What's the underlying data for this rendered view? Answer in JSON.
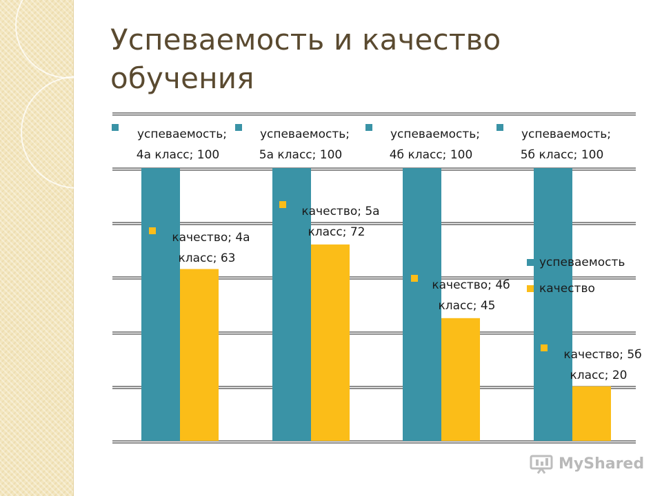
{
  "slide": {
    "title_line1": "Успеваемость и качество",
    "title_line2": "обучения",
    "brand": "MyShared"
  },
  "colors": {
    "success": "#3a93a6",
    "quality": "#fbbd18",
    "title": "#5a4a30",
    "gridline": "#1a1a1a",
    "strip": "#f3e6bf"
  },
  "chart_data": {
    "type": "bar",
    "categories": [
      "4а класс",
      "5а класс",
      "4б класс",
      "5б класс"
    ],
    "series": [
      {
        "name": "успеваемость",
        "values": [
          100,
          100,
          100,
          100
        ],
        "color": "#3a93a6"
      },
      {
        "name": "качество",
        "values": [
          63,
          72,
          45,
          20
        ],
        "color": "#fbbd18"
      }
    ],
    "ylim": [
      0,
      100
    ],
    "grid": true,
    "legend": "right",
    "data_labels": [
      {
        "series": 0,
        "cat": 0,
        "line1": "успеваемость;",
        "line2": "4а класс; 100"
      },
      {
        "series": 0,
        "cat": 1,
        "line1": "успеваемость;",
        "line2": "5а класс; 100"
      },
      {
        "series": 0,
        "cat": 2,
        "line1": "успеваемость;",
        "line2": "4б класс; 100"
      },
      {
        "series": 0,
        "cat": 3,
        "line1": "успеваемость;",
        "line2": "5б класс; 100"
      },
      {
        "series": 1,
        "cat": 0,
        "line1": "качество; 4а",
        "line2": "класс; 63"
      },
      {
        "series": 1,
        "cat": 1,
        "line1": "качество; 5а",
        "line2": "класс; 72"
      },
      {
        "series": 1,
        "cat": 2,
        "line1": "качество; 4б",
        "line2": "класс; 45"
      },
      {
        "series": 1,
        "cat": 3,
        "line1": "качество; 5б",
        "line2": "класс; 20"
      }
    ],
    "legend_entries": [
      "успеваемость",
      "качество"
    ]
  }
}
